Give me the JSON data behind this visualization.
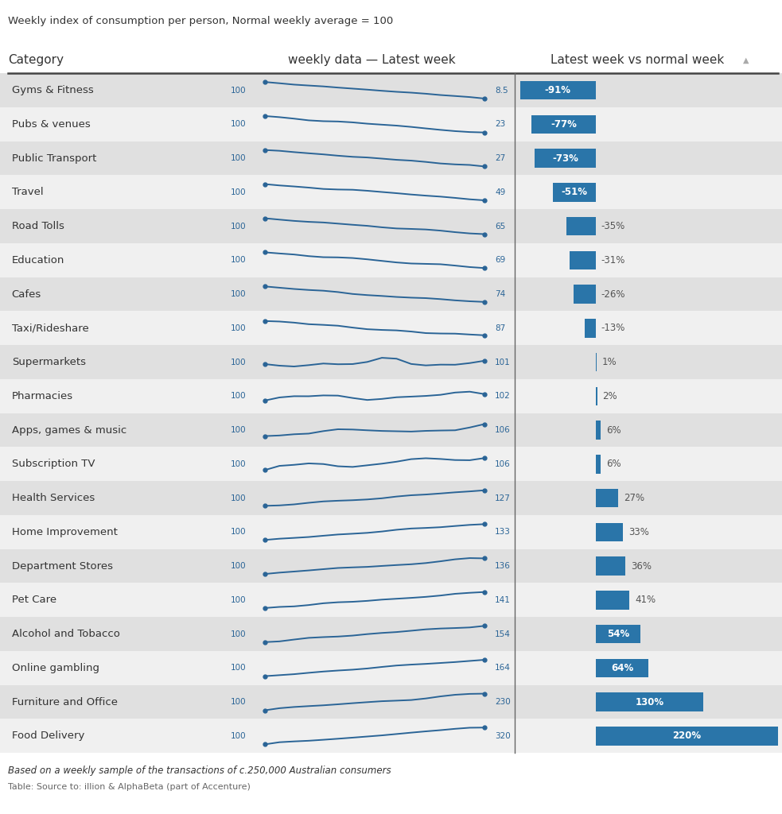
{
  "title": "Weekly index of consumption per person, Normal weekly average = 100",
  "col1_header": "Category",
  "col2_header": "weekly data — Latest week",
  "col3_header": "Latest week vs normal week",
  "categories": [
    "Gyms & Fitness",
    "Pubs & venues",
    "Public Transport",
    "Travel",
    "Road Tolls",
    "Education",
    "Cafes",
    "Taxi/Rideshare",
    "Supermarkets",
    "Pharmacies",
    "Apps, games & music",
    "Subscription TV",
    "Health Services",
    "Home Improvement",
    "Department Stores",
    "Pet Care",
    "Alcohol and Tobacco",
    "Online gambling",
    "Furniture and Office",
    "Food Delivery"
  ],
  "end_values": [
    8.5,
    23,
    27,
    49,
    65,
    69,
    74,
    87,
    101,
    102,
    106,
    106,
    127,
    133,
    136,
    141,
    154,
    164,
    230,
    320
  ],
  "pct_changes": [
    -91,
    -77,
    -73,
    -51,
    -35,
    -31,
    -26,
    -13,
    1,
    2,
    6,
    6,
    27,
    33,
    36,
    41,
    54,
    64,
    130,
    220
  ],
  "spark_seeds": [
    10,
    20,
    30,
    40,
    50,
    60,
    70,
    80,
    90,
    100,
    110,
    120,
    130,
    140,
    150,
    160,
    170,
    180,
    190,
    200
  ],
  "footnote1": "Based on a weekly sample of the transactions of c.250,000 Australian consumers",
  "footnote2": "Table: Source to: illion & AlphaBeta (part of Accenture)",
  "line_color": "#2a6496",
  "bar_color": "#2a75a9",
  "bg_color_dark": "#e0e0e0",
  "bg_color_light": "#f0f0f0",
  "text_color_blue": "#2a6496",
  "text_color_dark": "#333333",
  "text_color_mid": "#555555",
  "white": "#ffffff"
}
